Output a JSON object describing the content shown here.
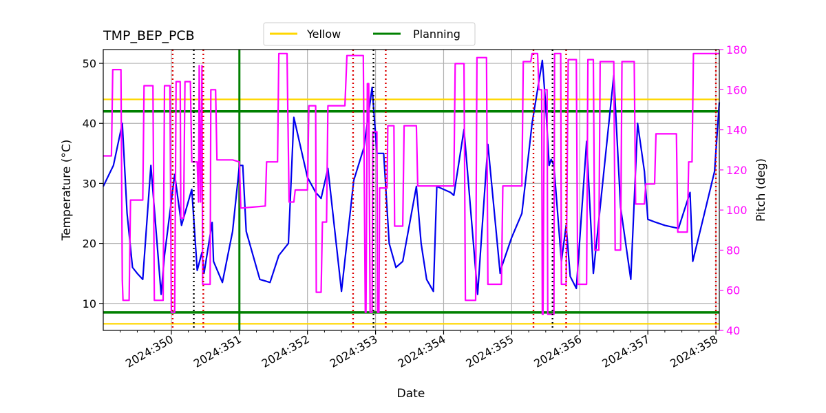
{
  "chart_data": {
    "type": "line",
    "title": "TMP_BEP_PCB",
    "xlabel": "Date",
    "ylabel": "Temperature ($^\\circ$C)",
    "ylabel_display": "Temperature (°C)",
    "y2label": "Pitch (deg)",
    "xlim": [
      349.0,
      358.05
    ],
    "ylim": [
      5.5,
      52.3
    ],
    "y2lim": [
      40,
      180
    ],
    "x_ticks": [
      350,
      351,
      352,
      353,
      354,
      355,
      356,
      357,
      358
    ],
    "x_tick_labels": [
      "2024:350",
      "2024:351",
      "2024:352",
      "2024:353",
      "2024:354",
      "2024:355",
      "2024:356",
      "2024:357",
      "2024:358"
    ],
    "y_ticks": [
      10,
      20,
      30,
      40,
      50
    ],
    "y_tick_labels": [
      "10",
      "20",
      "30",
      "40",
      "50"
    ],
    "y2_ticks": [
      40,
      60,
      80,
      100,
      120,
      140,
      160,
      180
    ],
    "y2_tick_labels": [
      "40",
      "60",
      "80",
      "100",
      "120",
      "140",
      "160",
      "180"
    ],
    "grid": true,
    "legend": {
      "location": "top-center",
      "entries": [
        {
          "label": "Yellow",
          "color": "#ffd700"
        },
        {
          "label": "Planning",
          "color": "#008000"
        }
      ]
    },
    "limits": {
      "yellow": [
        6.6,
        44.0
      ],
      "planning": [
        8.5,
        42.0
      ]
    },
    "planning_vline_x": 351.0,
    "red_dotted_x": [
      350.02,
      350.47,
      352.67,
      353.15,
      355.32,
      355.8,
      358.0
    ],
    "black_dotted_x": [
      350.33,
      352.97,
      355.6
    ],
    "colors": {
      "temperature": "#0000ee",
      "pitch": "#ff00ff",
      "yellow": "#ffd700",
      "planning": "#008000",
      "red_marker": "#dd0000",
      "black_marker": "#000000",
      "grid": "#b0b0b0"
    },
    "series": [
      {
        "name": "Temperature",
        "axis": "left",
        "x": [
          349.0,
          349.15,
          349.28,
          349.35,
          349.43,
          349.5,
          349.58,
          349.7,
          349.85,
          349.9,
          350.05,
          350.15,
          350.3,
          350.38,
          350.45,
          350.48,
          350.6,
          350.62,
          350.75,
          350.9,
          351.0,
          351.05,
          351.1,
          351.3,
          351.45,
          351.58,
          351.72,
          351.8,
          352.0,
          352.12,
          352.2,
          352.3,
          352.5,
          352.68,
          352.83,
          352.95,
          353.02,
          353.08,
          353.12,
          353.2,
          353.3,
          353.4,
          353.6,
          353.67,
          353.75,
          353.85,
          353.9,
          354.1,
          354.15,
          354.3,
          354.5,
          354.55,
          354.65,
          354.83,
          354.85,
          355.0,
          355.15,
          355.3,
          355.45,
          355.5,
          355.55,
          355.58,
          355.62,
          355.73,
          355.8,
          355.86,
          355.95,
          356.1,
          356.2,
          356.5,
          356.6,
          356.75,
          356.85,
          356.95,
          357.0,
          357.12,
          357.25,
          357.45,
          357.62,
          357.66,
          357.82,
          357.98,
          358.05
        ],
        "y": [
          29.5,
          33.0,
          40.0,
          25.0,
          16.0,
          15.0,
          14.0,
          33.0,
          11.5,
          18.0,
          31.5,
          23.0,
          29.0,
          15.5,
          18.5,
          15.0,
          23.5,
          17.0,
          13.5,
          22.0,
          33.0,
          33.0,
          22.0,
          14.0,
          13.5,
          18.0,
          20.0,
          41.0,
          31.0,
          28.5,
          27.5,
          32.5,
          12.0,
          30.5,
          36.0,
          46.0,
          35.0,
          35.0,
          35.0,
          20.0,
          16.0,
          17.0,
          29.5,
          20.0,
          14.0,
          12.0,
          29.5,
          28.5,
          28.0,
          39.0,
          11.5,
          20.0,
          36.5,
          15.0,
          16.0,
          21.0,
          25.0,
          40.0,
          50.5,
          43.0,
          33.0,
          34.0,
          33.0,
          17.0,
          23.0,
          14.5,
          12.5,
          37.0,
          15.0,
          48.0,
          26.0,
          14.0,
          40.0,
          32.0,
          24.0,
          23.5,
          23.0,
          22.5,
          28.5,
          17.0,
          24.5,
          32.0,
          43.5
        ]
      },
      {
        "name": "Pitch",
        "axis": "right",
        "x": [
          349.0,
          349.12,
          349.14,
          349.26,
          349.28,
          349.29,
          349.38,
          349.4,
          349.58,
          349.6,
          349.73,
          349.75,
          349.88,
          349.9,
          349.98,
          350.0,
          350.05,
          350.07,
          350.13,
          350.14,
          350.18,
          350.2,
          350.28,
          350.3,
          350.38,
          350.4,
          350.41,
          350.43,
          350.45,
          350.46,
          350.47,
          350.48,
          350.57,
          350.58,
          350.65,
          350.67,
          350.9,
          351.0,
          351.02,
          351.04,
          351.38,
          351.4,
          351.56,
          351.58,
          351.7,
          351.73,
          351.8,
          351.82,
          352.0,
          352.02,
          352.12,
          352.13,
          352.2,
          352.22,
          352.28,
          352.3,
          352.55,
          352.58,
          352.66,
          352.68,
          352.82,
          352.85,
          352.86,
          352.88,
          352.9,
          352.92,
          352.95,
          352.96,
          353.02,
          353.03,
          353.05,
          353.06,
          353.17,
          353.18,
          353.27,
          353.28,
          353.4,
          353.42,
          353.6,
          353.62,
          353.75,
          353.77,
          354.15,
          354.17,
          354.3,
          354.32,
          354.47,
          354.49,
          354.63,
          354.65,
          354.85,
          354.87,
          355.15,
          355.17,
          355.28,
          355.3,
          355.38,
          355.4,
          355.44,
          355.45,
          355.46,
          355.48,
          355.52,
          355.53,
          355.55,
          355.6,
          355.62,
          355.63,
          355.72,
          355.73,
          355.8,
          355.83,
          355.95,
          355.97,
          356.1,
          356.12,
          356.2,
          356.22,
          356.28,
          356.3,
          356.5,
          356.52,
          356.6,
          356.62,
          356.8,
          356.82,
          356.95,
          356.97,
          357.1,
          357.12,
          357.42,
          357.44,
          357.58,
          357.6,
          357.62,
          357.63,
          357.65,
          357.67,
          357.98,
          358.0,
          358.05
        ],
        "y": [
          127,
          127,
          170,
          170,
          65,
          55,
          55,
          105,
          105,
          162,
          162,
          55,
          55,
          162,
          162,
          49,
          49,
          164,
          164,
          96,
          96,
          164,
          164,
          124,
          124,
          104,
          172,
          104,
          172,
          63,
          63,
          63,
          63,
          160,
          160,
          125,
          125,
          124,
          101,
          101,
          102,
          124,
          124,
          178,
          178,
          104,
          104,
          110,
          110,
          152,
          152,
          59,
          59,
          94,
          94,
          152,
          152,
          177,
          177,
          177,
          177,
          49,
          49,
          163,
          163,
          49,
          49,
          139,
          139,
          49,
          49,
          111,
          111,
          142,
          142,
          92,
          92,
          142,
          142,
          112,
          112,
          112,
          112,
          173,
          173,
          55,
          55,
          176,
          176,
          63,
          63,
          112,
          112,
          174,
          174,
          178,
          178,
          160,
          160,
          48,
          48,
          160,
          160,
          48,
          48,
          48,
          48,
          178,
          178,
          63,
          63,
          175,
          175,
          63,
          63,
          175,
          175,
          80,
          80,
          174,
          174,
          80,
          80,
          174,
          174,
          103,
          103,
          113,
          113,
          138,
          138,
          89,
          89,
          124,
          124,
          124,
          124,
          178,
          178,
          178,
          178
        ]
      }
    ]
  }
}
